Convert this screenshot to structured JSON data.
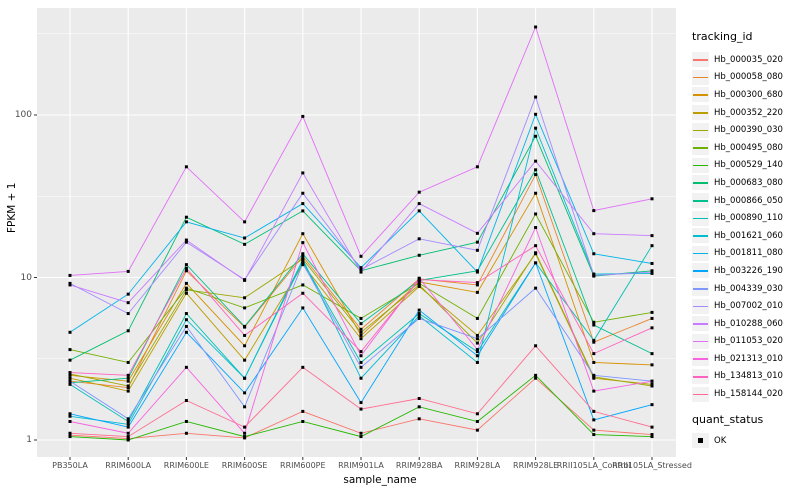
{
  "chart_data": {
    "type": "line",
    "title": "",
    "xlabel": "sample_name",
    "ylabel": "FPKM + 1",
    "y_scale": "log10",
    "yticks": [
      1,
      10,
      100
    ],
    "grid": "on",
    "legend_position": "right",
    "legend_title": "tracking_id",
    "legend2_title": "quant_status",
    "legend2_items": [
      "OK"
    ],
    "point_marker": "filled-square",
    "point_color": "#000000",
    "colors": {
      "panel_background": "#EBEBEB",
      "gridline": "#FFFFFF",
      "page_background": "#FFFFFF",
      "legend_key_background": "#F2F2F2",
      "tick_text": "#4D4D4D"
    },
    "x_categories": [
      "PB350LA",
      "RRIM600LA",
      "RRIM600LE",
      "RRIM600SE",
      "RRIM600PE",
      "RRIM901LA",
      "RRIM928BA",
      "RRIM928LA",
      "RRIM928LE",
      "RRII105LA_Control",
      "RRII105LA_Stressed"
    ],
    "series": [
      {
        "name": "Hb_000035_020",
        "color": "#F8766D",
        "values": [
          1.07,
          1.02,
          1.1,
          1.03,
          1.5,
          1.1,
          1.35,
          1.15,
          2.4,
          1.15,
          1.08
        ]
      },
      {
        "name": "Hb_000058_080",
        "color": "#E9842C",
        "values": [
          2.3,
          2.1,
          11.0,
          4.95,
          13.5,
          4.8,
          9.8,
          9.0,
          43.0,
          4.0,
          5.6
        ]
      },
      {
        "name": "Hb_000300_680",
        "color": "#D69100",
        "values": [
          2.5,
          2.3,
          9.2,
          3.8,
          18.6,
          4.4,
          9.4,
          8.1,
          33.0,
          3.0,
          2.9
        ]
      },
      {
        "name": "Hb_000352_220",
        "color": "#BC9D00",
        "values": [
          2.4,
          2.0,
          8.0,
          3.1,
          12.0,
          4.2,
          8.8,
          4.4,
          14.0,
          2.4,
          2.2
        ]
      },
      {
        "name": "Hb_000390_030",
        "color": "#9CA700",
        "values": [
          2.55,
          2.15,
          8.4,
          7.5,
          13.0,
          4.6,
          9.0,
          3.95,
          14.2,
          2.45,
          2.15
        ]
      },
      {
        "name": "Hb_000495_080",
        "color": "#6FB000",
        "values": [
          3.6,
          3.0,
          8.6,
          6.5,
          9.0,
          5.6,
          9.2,
          5.6,
          24.6,
          5.3,
          6.1
        ]
      },
      {
        "name": "Hb_000529_140",
        "color": "#24B700",
        "values": [
          1.05,
          1.0,
          1.3,
          1.05,
          1.3,
          1.05,
          1.6,
          1.3,
          2.5,
          1.08,
          1.05
        ]
      },
      {
        "name": "Hb_000683_080",
        "color": "#00BE70",
        "values": [
          3.1,
          4.7,
          23.5,
          16.0,
          25.7,
          11.0,
          13.7,
          16.5,
          74.0,
          10.2,
          11.0
        ]
      },
      {
        "name": "Hb_000866_050",
        "color": "#00C08D",
        "values": [
          2.25,
          2.4,
          12.0,
          5.0,
          14.0,
          5.2,
          9.6,
          11.0,
          46.0,
          5.1,
          3.4
        ]
      },
      {
        "name": "Hb_000890_110",
        "color": "#00C0B4",
        "values": [
          2.2,
          1.3,
          6.0,
          2.4,
          12.5,
          3.0,
          6.0,
          3.5,
          12.3,
          4.1,
          15.7
        ]
      },
      {
        "name": "Hb_001621_060",
        "color": "#00BDD2",
        "values": [
          1.4,
          1.25,
          5.5,
          2.4,
          12.9,
          2.4,
          5.8,
          3.0,
          83.0,
          10.5,
          10.6
        ]
      },
      {
        "name": "Hb_001811_080",
        "color": "#00B4EB",
        "values": [
          4.6,
          7.9,
          22.0,
          17.5,
          28.5,
          11.5,
          25.7,
          10.8,
          101,
          14.0,
          12.2
        ]
      },
      {
        "name": "Hb_003226_190",
        "color": "#00A6FF",
        "values": [
          1.45,
          1.2,
          4.6,
          1.95,
          6.5,
          1.7,
          6.3,
          3.3,
          12.3,
          1.33,
          1.65
        ]
      },
      {
        "name": "Hb_004339_030",
        "color": "#7F96FF",
        "values": [
          2.3,
          1.35,
          5.0,
          1.6,
          12.2,
          2.8,
          5.6,
          4.2,
          8.6,
          2.5,
          2.3
        ]
      },
      {
        "name": "Hb_007002_010",
        "color": "#A58AFF",
        "values": [
          9.2,
          6.0,
          16.5,
          9.7,
          33.0,
          11.2,
          17.3,
          14.7,
          129,
          10.3,
          10.8
        ]
      },
      {
        "name": "Hb_010288_060",
        "color": "#C77CFF",
        "values": [
          9.0,
          7.0,
          17.0,
          9.6,
          44.0,
          10.8,
          28.5,
          18.7,
          52.0,
          18.6,
          18.1
        ]
      },
      {
        "name": "Hb_011053_020",
        "color": "#E26EF7",
        "values": [
          10.3,
          10.9,
          48.0,
          22.0,
          98.0,
          13.5,
          33.5,
          48.0,
          348,
          25.8,
          30.5
        ]
      },
      {
        "name": "Hb_021313_010",
        "color": "#F863E0",
        "values": [
          1.3,
          1.1,
          2.8,
          1.1,
          16.4,
          3.3,
          9.9,
          3.6,
          20.3,
          2.0,
          2.3
        ]
      },
      {
        "name": "Hb_134813_010",
        "color": "#FF62BE",
        "values": [
          2.6,
          2.5,
          11.4,
          4.4,
          8.0,
          3.5,
          9.7,
          9.3,
          15.7,
          3.4,
          4.9
        ]
      },
      {
        "name": "Hb_158144_020",
        "color": "#FF6C91",
        "values": [
          1.1,
          1.05,
          1.75,
          1.2,
          2.8,
          1.55,
          1.8,
          1.45,
          3.8,
          1.5,
          1.2
        ]
      }
    ]
  }
}
